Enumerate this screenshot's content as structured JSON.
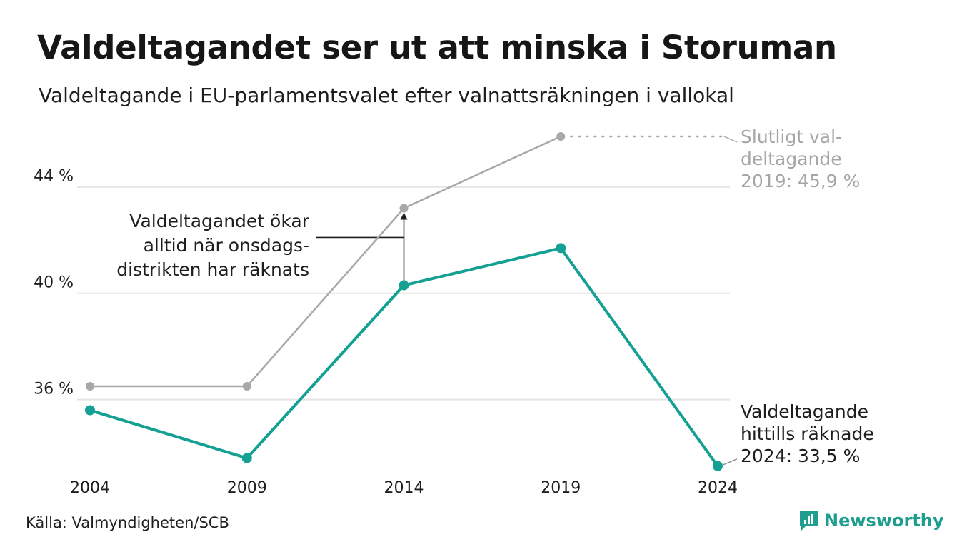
{
  "header": {
    "title": "Valdeltagandet ser ut att minska i Storuman",
    "subtitle": "Valdeltagande i EU-parlamentsvalet efter valnattsräkningen i vallokal"
  },
  "source": "Källa: Valmyndigheten/SCB",
  "brand": {
    "name": "Newsworthy",
    "icon": "newsworthy-logo-icon",
    "color": "#1f9e8f"
  },
  "colors": {
    "counted": "#14a093",
    "final": "#a8a8a8",
    "grid": "#e4e4e4"
  },
  "chart_data": {
    "type": "line",
    "x": [
      2004,
      2009,
      2014,
      2019,
      2024
    ],
    "x_tick_labels": [
      "2004",
      "2009",
      "2014",
      "2019",
      "2024"
    ],
    "y_ticks": [
      36,
      40,
      44
    ],
    "y_tick_labels": [
      "36 %",
      "40 %",
      "44 %"
    ],
    "ylim": [
      32.5,
      47
    ],
    "grid": true,
    "series": [
      {
        "key": "final",
        "values": [
          36.5,
          36.5,
          43.2,
          45.9,
          null
        ]
      },
      {
        "key": "counted",
        "values": [
          35.6,
          33.8,
          40.3,
          41.7,
          33.5
        ]
      }
    ],
    "annotations": {
      "arrow": [
        "Valdeltagandet ökar",
        "alltid när onsdags-",
        "distrikten har räknats"
      ],
      "final": [
        "Slutligt val-",
        "deltagande",
        "2019: 45,9 %"
      ],
      "counted": [
        "Valdeltagande",
        "hittills räknade",
        "2024: 33,5 %"
      ]
    }
  }
}
